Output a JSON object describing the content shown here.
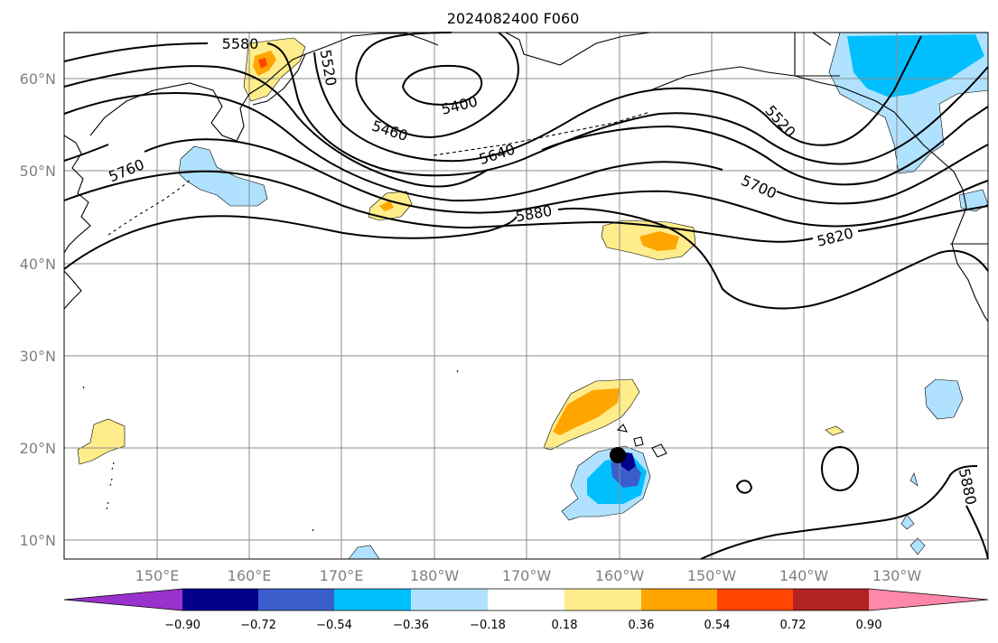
{
  "title": "2024082400 F060",
  "axes": {
    "lon_labels": [
      "150°E",
      "160°E",
      "170°E",
      "180°W",
      "170°W",
      "160°W",
      "150°W",
      "140°W",
      "130°W"
    ],
    "lat_labels": [
      "60°N",
      "50°N",
      "40°N",
      "30°N",
      "20°N",
      "10°N"
    ]
  },
  "contour_labels": [
    "5580",
    "5520",
    "5400",
    "5460",
    "5640",
    "5760",
    "5700",
    "5880",
    "5820",
    "5520",
    "5880"
  ],
  "colorbar": {
    "ticks": [
      "−0.90",
      "−0.72",
      "−0.54",
      "−0.36",
      "−0.18",
      "0.18",
      "0.36",
      "0.54",
      "0.72",
      "0.90"
    ],
    "colors": [
      "#9932cc",
      "#00008b",
      "#3a5fcd",
      "#00bfff",
      "#b0e2ff",
      "#ffffff",
      "#ffec8b",
      "#ffa500",
      "#ff4500",
      "#b22222",
      "#ff88aa"
    ]
  }
}
